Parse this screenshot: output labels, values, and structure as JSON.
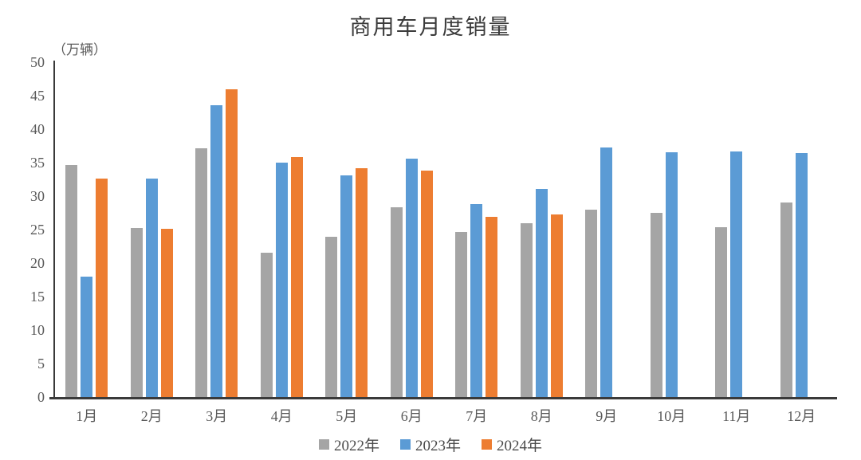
{
  "chart_data": {
    "type": "bar",
    "title": "商用车月度销量",
    "unit_label": "（万辆）",
    "categories": [
      "1月",
      "2月",
      "3月",
      "4月",
      "5月",
      "6月",
      "7月",
      "8月",
      "9月",
      "10月",
      "11月",
      "12月"
    ],
    "series": [
      {
        "name": "2022年",
        "color": "#A5A5A5",
        "values": [
          34.6,
          25.2,
          37.2,
          21.6,
          23.9,
          28.3,
          24.7,
          25.9,
          28.0,
          27.5,
          25.4,
          29.1
        ]
      },
      {
        "name": "2023年",
        "color": "#5B9BD5",
        "values": [
          18.0,
          32.6,
          43.6,
          35.0,
          33.1,
          35.6,
          28.8,
          31.1,
          37.3,
          36.5,
          36.7,
          36.4
        ]
      },
      {
        "name": "2024年",
        "color": "#ED7D31",
        "values": [
          32.6,
          25.1,
          46.0,
          35.8,
          34.2,
          33.8,
          26.9,
          27.3,
          null,
          null,
          null,
          null
        ]
      }
    ],
    "ylim": [
      0,
      50
    ],
    "ytick_step": 5,
    "grid": false,
    "legend_position": "bottom"
  }
}
